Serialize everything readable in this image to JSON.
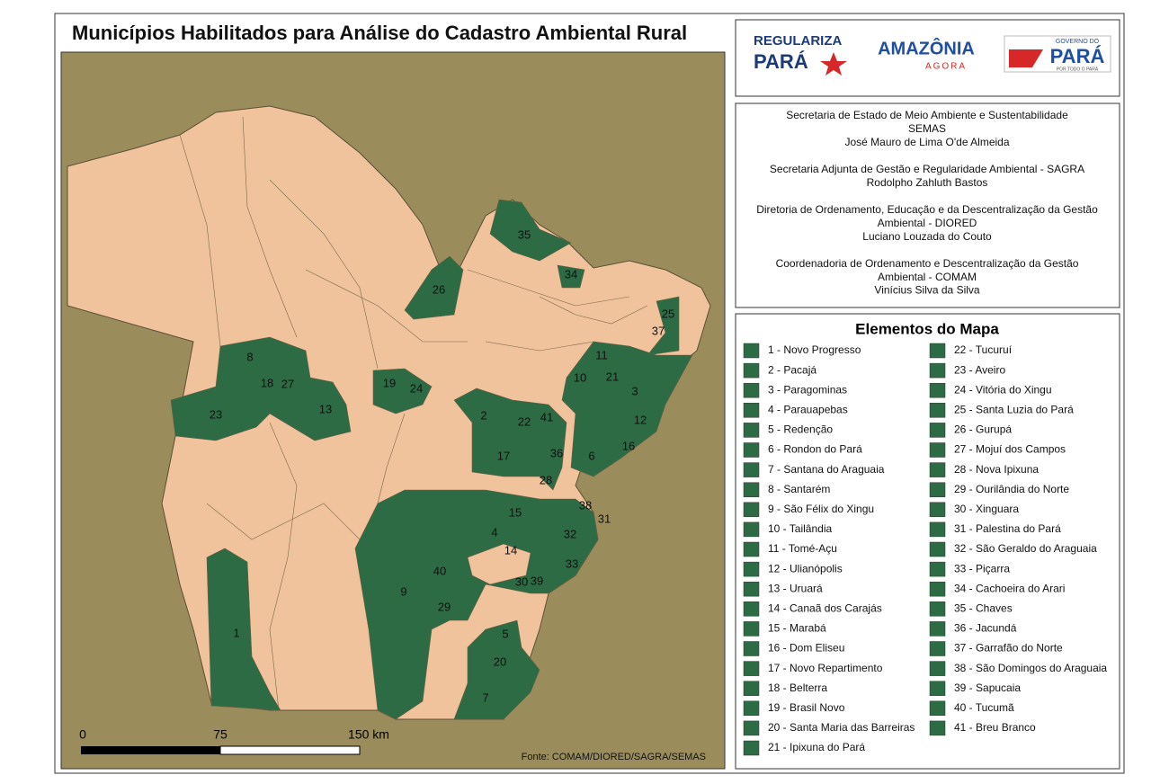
{
  "title": "Municípios Habilitados para Análise do Cadastro Ambiental Rural",
  "logos": [
    {
      "line1": "REGULARIZA",
      "line2": "PARÁ"
    },
    {
      "line1": "AMAZÔNIA",
      "line2": "AGORA"
    },
    {
      "line1": "GOVERNO DO",
      "line2": "PARÁ",
      "line3": "POR TODO O PARÁ"
    }
  ],
  "credits": [
    [
      "Secretaria de Estado de Meio Ambiente e Sustentabilidade",
      "SEMAS",
      "José Mauro de Lima O'de Almeida"
    ],
    [
      "Secretaria Adjunta de Gestão e Regularidade Ambiental - SAGRA",
      "Rodolpho Zahluth Bastos"
    ],
    [
      "Diretoria de Ordenamento, Educação e da Descentralização da Gestão",
      "Ambiental - DIORED",
      "Luciano Louzada do Couto"
    ],
    [
      "Coordenadoria de Ordenamento e Descentralização da Gestão",
      "Ambiental - COMAM",
      "Vinícius Silva da Silva"
    ]
  ],
  "legend": {
    "title": "Elementos do Mapa",
    "items": [
      "1 - Novo Progresso",
      "2 - Pacajá",
      "3 - Paragominas",
      "4 - Parauapebas",
      "5 - Redenção",
      "6 - Rondon do Pará",
      "7 - Santana do Araguaia",
      "8 - Santarém",
      "9 - São Félix do Xingu",
      "10 - Tailândia",
      "11 - Tomé-Açu",
      "12 - Ulianópolis",
      "13 - Uruará",
      "14 - Canaã dos Carajás",
      "15 - Marabá",
      "16 - Dom Eliseu",
      "17 - Novo Repartimento",
      "18 - Belterra",
      "19 - Brasil Novo",
      "20 - Santa Maria das Barreiras",
      "21 - Ipixuna do Pará",
      "22 - Tucuruí",
      "23 - Aveiro",
      "24 - Vitória do Xingu",
      "25 - Santa Luzia do Pará",
      "26 - Gurupá",
      "27 - Mojuí dos Campos",
      "28 - Nova Ipixuna",
      "29 - Ourilândia do Norte",
      "30 - Xinguara",
      "31 - Palestina do Pará",
      "32 - São Geraldo do Araguaia",
      "33 - Piçarra",
      "34 - Cachoeira do Arari",
      "35 - Chaves",
      "36 - Jacundá",
      "37 - Garrafão do Norte",
      "38 - São Domingos do Araguaia",
      "39 - Sapucaia",
      "40 - Tucumã",
      "41 - Breu Branco"
    ]
  },
  "map": {
    "labels": [
      "1",
      "2",
      "3",
      "4",
      "5",
      "6",
      "7",
      "8",
      "9",
      "10",
      "11",
      "12",
      "13",
      "14",
      "15",
      "16",
      "17",
      "18",
      "19",
      "20",
      "21",
      "22",
      "23",
      "24",
      "25",
      "26",
      "27",
      "28",
      "29",
      "30",
      "31",
      "32",
      "33",
      "34",
      "35",
      "36",
      "37",
      "38",
      "39",
      "40",
      "41"
    ]
  },
  "scale": {
    "labels": [
      "0",
      "75",
      "150 km"
    ]
  },
  "source": "Fonte: COMAM/DIORED/SAGRA/SEMAS"
}
